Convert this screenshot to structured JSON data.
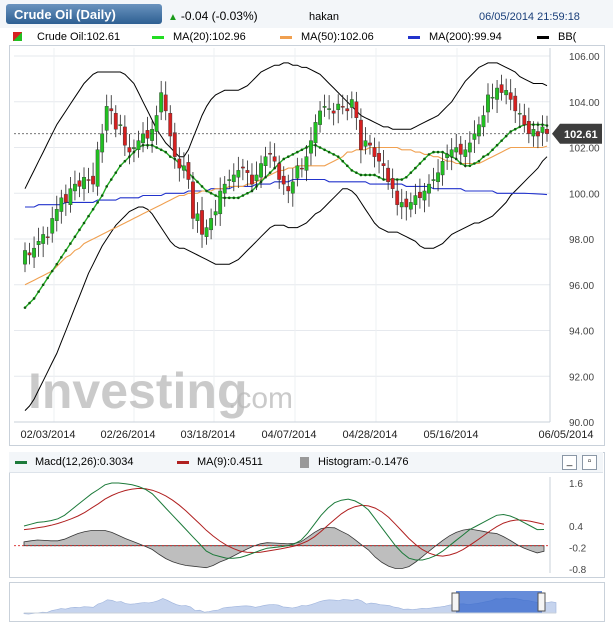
{
  "header": {
    "title": "Crude Oil (Daily)",
    "change": "-0.04 (-0.03%)",
    "user": "hakan",
    "datetime": "06/05/2014 21:59:18"
  },
  "legend": {
    "price": "Crude Oil:102.61",
    "ma20": "MA(20):102.96",
    "ma50": "MA(50):102.06",
    "ma200": "MA(200):99.94",
    "bb": "BB("
  },
  "watermark": {
    "brand": "Investing",
    "suffix": ".com"
  },
  "current_price_label": "102.61",
  "macd_legend": {
    "macd": "Macd(12,26):0.3034",
    "signal": "MA(9):0.4511",
    "hist": "Histogram:-0.1476"
  },
  "colors": {
    "up": "#22c022",
    "down": "#d62020",
    "ma20": "#118811",
    "ma50": "#f0a050",
    "ma200": "#2233cc",
    "bb": "#000000",
    "macd": "#1c7a3a",
    "signal": "#b02020",
    "hist": "#999999"
  },
  "chart_data": [
    {
      "type": "candlestick",
      "title": "Crude Oil (Daily)",
      "ylim": [
        90,
        106
      ],
      "yticks": [
        "106.00",
        "104.00",
        "102.00",
        "100.00",
        "98.00",
        "96.00",
        "94.00",
        "92.00",
        "90.00"
      ],
      "xticks": [
        "02/03/2014",
        "02/26/2014",
        "03/18/2014",
        "04/07/2014",
        "04/28/2014",
        "05/16/2014",
        "06/05/2014"
      ],
      "close": [
        97.5,
        97.3,
        97.6,
        97.9,
        98.2,
        98.1,
        98.9,
        99.3,
        99.8,
        99.6,
        100.2,
        100.4,
        100.3,
        100.7,
        100.6,
        100.4,
        101.9,
        102.6,
        103.8,
        103.6,
        102.8,
        103.0,
        102.1,
        101.8,
        102.0,
        102.3,
        102.6,
        102.4,
        102.8,
        103.4,
        104.4,
        103.6,
        102.5,
        101.6,
        101.1,
        101.2,
        100.6,
        98.9,
        99.1,
        98.2,
        98.5,
        98.9,
        99.2,
        100.1,
        100.4,
        100.6,
        100.8,
        101.0,
        101.1,
        100.9,
        100.4,
        100.8,
        101.3,
        101.6,
        101.7,
        101.4,
        100.6,
        100.4,
        100.1,
        100.5,
        101.2,
        101.1,
        101.6,
        102.3,
        103.1,
        103.6,
        103.8,
        103.7,
        103.5,
        103.9,
        103.8,
        103.6,
        104.1,
        103.3,
        101.9,
        102.3,
        102.1,
        101.6,
        101.4,
        101.2,
        100.5,
        100.2,
        99.5,
        99.6,
        99.4,
        99.6,
        99.9,
        99.8,
        100.1,
        100.4,
        100.6,
        100.9,
        101.4,
        101.7,
        101.9,
        102.0,
        101.7,
        101.9,
        102.2,
        102.6,
        103.0,
        103.4,
        104.3,
        104.2,
        104.6,
        104.4,
        104.5,
        104.1,
        103.6,
        103.5,
        103.0,
        102.6,
        102.8,
        102.5,
        102.9,
        102.6
      ],
      "series": [
        {
          "name": "MA(20)",
          "values": [
            95.0,
            95.2,
            95.4,
            95.7,
            96.0,
            96.3,
            96.6,
            96.9,
            97.2,
            97.5,
            97.8,
            98.1,
            98.4,
            98.7,
            99.0,
            99.3,
            99.6,
            99.9,
            100.3,
            100.6,
            100.9,
            101.2,
            101.4,
            101.6,
            101.8,
            102.0,
            102.1,
            102.1,
            102.1,
            102.0,
            101.9,
            101.8,
            101.6,
            101.5,
            101.3,
            101.1,
            100.9,
            100.7,
            100.5,
            100.3,
            100.1,
            100.0,
            99.9,
            99.8,
            99.8,
            99.8,
            99.8,
            99.8,
            99.9,
            100.0,
            100.1,
            100.3,
            100.5,
            100.7,
            100.9,
            101.1,
            101.3,
            101.5,
            101.6,
            101.7,
            101.8,
            101.9,
            102.0,
            102.1,
            102.1,
            102.0,
            101.9,
            101.8,
            101.7,
            101.6,
            101.4,
            101.2,
            101.0,
            100.9,
            100.8,
            100.8,
            100.8,
            100.8,
            100.7,
            100.6,
            100.6,
            100.6,
            100.6,
            100.6,
            100.7,
            100.9,
            101.1,
            101.3,
            101.5,
            101.7,
            101.8,
            101.8,
            101.8,
            101.7,
            101.6,
            101.5,
            101.3,
            101.2,
            101.2,
            101.3,
            101.4,
            101.6,
            101.7,
            101.9,
            102.1,
            102.3,
            102.5,
            102.7,
            102.8,
            102.9,
            103.0,
            103.0,
            103.0,
            103.0,
            103.0,
            102.96
          ]
        },
        {
          "name": "MA(50)",
          "values": [
            96.0,
            96.1,
            96.2,
            96.3,
            96.4,
            96.5,
            96.6,
            96.8,
            97.0,
            97.2,
            97.3,
            97.5,
            97.6,
            97.8,
            97.9,
            98.0,
            98.1,
            98.2,
            98.3,
            98.4,
            98.5,
            98.6,
            98.7,
            98.8,
            98.9,
            99.0,
            99.1,
            99.2,
            99.3,
            99.4,
            99.5,
            99.6,
            99.7,
            99.8,
            99.9,
            99.9,
            100.0,
            100.0,
            100.0,
            100.1,
            100.1,
            100.1,
            100.2,
            100.2,
            100.2,
            100.3,
            100.3,
            100.3,
            100.3,
            100.4,
            100.4,
            100.5,
            100.6,
            100.7,
            100.8,
            100.9,
            101.0,
            101.0,
            101.1,
            101.1,
            101.2,
            101.2,
            101.2,
            101.2,
            101.2,
            101.2,
            101.2,
            101.3,
            101.4,
            101.5,
            101.6,
            101.8,
            101.8,
            101.9,
            101.9,
            101.9,
            102.0,
            102.0,
            102.0,
            102.0,
            102.0,
            102.0,
            102.0,
            101.9,
            101.9,
            101.9,
            101.8,
            101.8,
            101.7,
            101.7,
            101.6,
            101.6,
            101.5,
            101.4,
            101.4,
            101.3,
            101.3,
            101.3,
            101.3,
            101.3,
            101.3,
            101.4,
            101.5,
            101.6,
            101.7,
            101.8,
            101.9,
            102.0,
            102.0,
            102.0,
            102.0,
            102.0,
            102.0,
            102.0,
            102.0,
            102.06
          ]
        },
        {
          "name": "MA(200)",
          "values": [
            99.4,
            99.4,
            99.4,
            99.5,
            99.5,
            99.5,
            99.5,
            99.5,
            99.5,
            99.6,
            99.6,
            99.6,
            99.6,
            99.6,
            99.6,
            99.6,
            99.7,
            99.7,
            99.7,
            99.7,
            99.7,
            99.8,
            99.8,
            99.8,
            99.8,
            99.8,
            99.9,
            99.9,
            99.9,
            99.9,
            99.9,
            100.0,
            100.0,
            100.0,
            100.0,
            100.0,
            100.1,
            100.1,
            100.1,
            100.1,
            100.1,
            100.2,
            100.2,
            100.2,
            100.2,
            100.2,
            100.3,
            100.3,
            100.3,
            100.3,
            100.3,
            100.4,
            100.4,
            100.4,
            100.4,
            100.5,
            100.5,
            100.5,
            100.5,
            100.6,
            100.6,
            100.6,
            100.6,
            100.6,
            100.6,
            100.6,
            100.6,
            100.5,
            100.5,
            100.5,
            100.5,
            100.5,
            100.5,
            100.5,
            100.5,
            100.5,
            100.4,
            100.4,
            100.4,
            100.4,
            100.4,
            100.4,
            100.4,
            100.4,
            100.3,
            100.3,
            100.3,
            100.3,
            100.3,
            100.3,
            100.2,
            100.2,
            100.2,
            100.2,
            100.2,
            100.2,
            100.2,
            100.1,
            100.1,
            100.1,
            100.1,
            100.1,
            100.1,
            100.1,
            100.0,
            100.0,
            100.0,
            100.0,
            100.0,
            100.0,
            100.0,
            99.99,
            99.98,
            99.97,
            99.96,
            99.94
          ]
        },
        {
          "name": "BB upper",
          "values": [
            100.2,
            100.6,
            101.0,
            101.4,
            101.8,
            102.2,
            102.6,
            103.0,
            103.3,
            103.6,
            103.9,
            104.2,
            104.5,
            104.8,
            105.0,
            105.2,
            105.3,
            105.3,
            105.3,
            105.3,
            105.3,
            105.3,
            105.2,
            105.0,
            104.8,
            104.4,
            104.0,
            103.6,
            103.2,
            102.8,
            102.5,
            102.2,
            102.0,
            101.8,
            101.6,
            101.6,
            101.9,
            102.4,
            102.9,
            103.4,
            103.8,
            104.1,
            104.3,
            104.4,
            104.5,
            104.5,
            104.5,
            104.5,
            104.6,
            104.7,
            104.9,
            105.1,
            105.3,
            105.4,
            105.5,
            105.6,
            105.6,
            105.7,
            105.7,
            105.6,
            105.6,
            105.5,
            105.5,
            105.4,
            105.3,
            105.2,
            105.0,
            104.8,
            104.6,
            104.4,
            104.2,
            104.0,
            103.8,
            103.6,
            103.4,
            103.3,
            103.2,
            103.1,
            103.0,
            102.9,
            102.9,
            102.8,
            102.8,
            102.8,
            102.8,
            102.8,
            102.9,
            103.0,
            103.1,
            103.2,
            103.3,
            103.4,
            103.6,
            103.8,
            104.0,
            104.3,
            104.6,
            104.9,
            105.1,
            105.3,
            105.5,
            105.6,
            105.7,
            105.7,
            105.7,
            105.6,
            105.5,
            105.4,
            105.3,
            105.1,
            105.0,
            104.9,
            104.8,
            104.8,
            104.8,
            104.7
          ]
        },
        {
          "name": "BB lower",
          "values": [
            90.5,
            90.7,
            91.0,
            91.4,
            91.8,
            92.2,
            92.6,
            93.0,
            93.5,
            94.0,
            94.5,
            95.0,
            95.5,
            96.0,
            96.5,
            96.9,
            97.3,
            97.7,
            98.0,
            98.3,
            98.6,
            98.8,
            99.0,
            99.2,
            99.3,
            99.4,
            99.4,
            99.3,
            99.1,
            98.8,
            98.5,
            98.2,
            97.9,
            97.7,
            97.6,
            97.6,
            97.5,
            97.4,
            97.3,
            97.2,
            97.1,
            97.0,
            96.9,
            96.9,
            96.9,
            96.9,
            97.0,
            97.1,
            97.3,
            97.5,
            97.7,
            97.9,
            98.1,
            98.3,
            98.5,
            98.6,
            98.6,
            98.6,
            98.5,
            98.5,
            98.5,
            98.6,
            98.7,
            98.9,
            99.1,
            99.2,
            99.4,
            99.6,
            99.8,
            100.0,
            100.2,
            100.2,
            100.1,
            99.9,
            99.6,
            99.3,
            99.0,
            98.7,
            98.5,
            98.4,
            98.3,
            98.3,
            98.3,
            98.2,
            98.1,
            98.0,
            97.9,
            97.7,
            97.6,
            97.6,
            97.6,
            97.7,
            97.8,
            98.0,
            98.2,
            98.3,
            98.4,
            98.5,
            98.6,
            98.7,
            98.7,
            98.8,
            98.9,
            99.0,
            99.2,
            99.4,
            99.6,
            99.9,
            100.1,
            100.3,
            100.5,
            100.7,
            100.9,
            101.1,
            101.4,
            101.6
          ]
        }
      ]
    },
    {
      "type": "line",
      "title": "Macd(12,26)",
      "ylim": [
        -0.8,
        1.6
      ],
      "yticks": [
        "1.6",
        "0.4",
        "-0.2",
        "-0.8"
      ],
      "series": [
        {
          "name": "Macd(12,26)",
          "values": [
            0.4,
            0.45,
            0.5,
            0.52,
            0.55,
            0.6,
            0.7,
            0.85,
            1.0,
            1.15,
            1.3,
            1.42,
            1.55,
            1.6,
            1.6,
            1.58,
            1.55,
            1.5,
            1.42,
            1.3,
            1.1,
            0.9,
            0.7,
            0.5,
            0.3,
            0.1,
            -0.1,
            -0.3,
            -0.4,
            -0.45,
            -0.5,
            -0.5,
            -0.48,
            -0.42,
            -0.35,
            -0.28,
            -0.22,
            -0.2,
            -0.18,
            -0.15,
            -0.1,
            0.0,
            0.2,
            0.45,
            0.7,
            0.9,
            1.05,
            1.12,
            1.15,
            1.1,
            1.0,
            0.85,
            0.6,
            0.35,
            0.1,
            -0.15,
            -0.35,
            -0.5,
            -0.55,
            -0.55,
            -0.5,
            -0.42,
            -0.3,
            -0.15,
            0.0,
            0.15,
            0.3,
            0.4,
            0.5,
            0.6,
            0.7,
            0.72,
            0.68,
            0.6,
            0.5,
            0.4,
            0.3,
            0.3034
          ]
        },
        {
          "name": "MA(9)",
          "values": [
            0.3,
            0.32,
            0.35,
            0.38,
            0.42,
            0.47,
            0.53,
            0.6,
            0.68,
            0.78,
            0.9,
            1.02,
            1.15,
            1.25,
            1.33,
            1.39,
            1.43,
            1.45,
            1.44,
            1.4,
            1.33,
            1.24,
            1.12,
            0.98,
            0.82,
            0.64,
            0.46,
            0.28,
            0.12,
            -0.02,
            -0.14,
            -0.23,
            -0.3,
            -0.33,
            -0.34,
            -0.33,
            -0.3,
            -0.27,
            -0.24,
            -0.2,
            -0.16,
            -0.1,
            -0.02,
            0.1,
            0.25,
            0.42,
            0.58,
            0.74,
            0.86,
            0.94,
            0.98,
            0.96,
            0.9,
            0.79,
            0.64,
            0.45,
            0.25,
            0.05,
            -0.12,
            -0.26,
            -0.36,
            -0.42,
            -0.44,
            -0.41,
            -0.35,
            -0.26,
            -0.14,
            -0.01,
            0.12,
            0.26,
            0.38,
            0.48,
            0.54,
            0.57,
            0.56,
            0.53,
            0.49,
            0.4511
          ]
        },
        {
          "name": "Histogram",
          "values": [
            0.1,
            0.13,
            0.15,
            0.14,
            0.13,
            0.13,
            0.17,
            0.25,
            0.32,
            0.37,
            0.4,
            0.4,
            0.4,
            0.35,
            0.27,
            0.19,
            0.12,
            0.05,
            -0.02,
            -0.1,
            -0.23,
            -0.34,
            -0.42,
            -0.48,
            -0.52,
            -0.54,
            -0.56,
            -0.58,
            -0.52,
            -0.43,
            -0.36,
            -0.27,
            -0.18,
            -0.09,
            -0.01,
            0.05,
            0.08,
            0.07,
            0.06,
            0.05,
            0.06,
            0.1,
            0.22,
            0.35,
            0.45,
            0.48,
            0.47,
            0.38,
            0.29,
            0.16,
            0.02,
            -0.11,
            -0.3,
            -0.44,
            -0.54,
            -0.6,
            -0.6,
            -0.55,
            -0.43,
            -0.29,
            -0.14,
            0.0,
            0.14,
            0.26,
            0.35,
            0.41,
            0.44,
            0.41,
            0.38,
            0.34,
            0.32,
            0.24,
            0.14,
            0.03,
            -0.06,
            -0.13,
            -0.19,
            -0.1476
          ]
        }
      ]
    }
  ]
}
